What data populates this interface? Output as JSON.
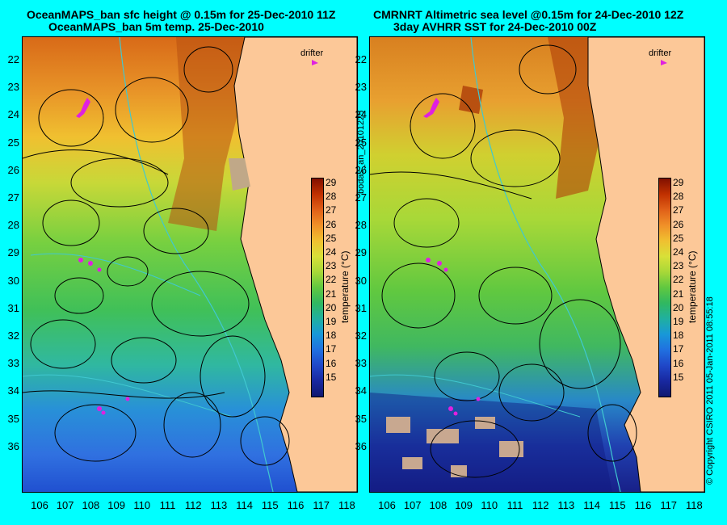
{
  "left_panel": {
    "title_line1": "OceanMAPS_ban sfc height @ 0.15m for 25-Dec-2010 11Z",
    "title_line2": "OceanMAPS_ban 5m temp. 25-Dec-2010",
    "drifter_label": "drifter"
  },
  "right_panel": {
    "title_line1": "CMRNRT Altimetric sea level  @0.15m  for 24-Dec-2010 12Z",
    "title_line2": "3day AVHRR SST for 24-Dec-2010 00Z",
    "drifter_label": "drifter"
  },
  "latitude_labels": [
    "22",
    "23",
    "24",
    "25",
    "26",
    "27",
    "28",
    "29",
    "30",
    "31",
    "32",
    "33",
    "34",
    "35",
    "36"
  ],
  "longitude_labels": [
    "106",
    "107",
    "108",
    "109",
    "110",
    "111",
    "112",
    "113",
    "114",
    "115",
    "116",
    "117",
    "118"
  ],
  "colorbar": {
    "title": "temperature (°C)",
    "ticks": [
      "29",
      "28",
      "27",
      "26",
      "25",
      "24",
      "23",
      "22",
      "21",
      "20",
      "19",
      "18",
      "17",
      "16",
      "15"
    ],
    "range": [
      14.5,
      29.5
    ]
  },
  "side_text_center": "bodas_an_20101225",
  "side_text_right": "© Copyright CSIRO 2011   05-Jan-2011 08:55:18",
  "colors": {
    "background": "#00ffff",
    "land": "#fcc898",
    "drifter": "#e020e0",
    "contour": "#000000",
    "isobath": "#40c8d0"
  }
}
